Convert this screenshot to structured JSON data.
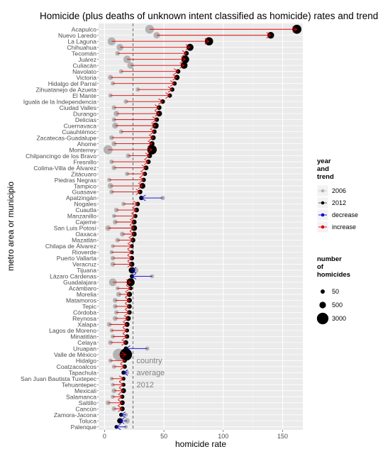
{
  "chart_data": {
    "type": "scatter",
    "title": "Homicide (plus deaths of unknown intent classified as homicide) rates and trends",
    "xlabel": "homicide rate",
    "ylabel": "metro area or municipio",
    "xlim": [
      -5,
      167
    ],
    "xticks": [
      0,
      50,
      100,
      150
    ],
    "grid": true,
    "country_average": {
      "value": 24,
      "lines": [
        "country",
        "average",
        "2012"
      ]
    },
    "colors": {
      "y2006": "#b3b3b3",
      "y2012": "#000000",
      "decrease": "#0000dd",
      "increase": "#dd0000",
      "panel": "#ebebeb",
      "avg_line": "#808080"
    },
    "rows": [
      {
        "name": "Acapulco",
        "r2006": 38,
        "r2012": 162,
        "h2012": 1500
      },
      {
        "name": "Nuevo Laredo",
        "r2006": 44,
        "r2012": 140,
        "h2012": 550
      },
      {
        "name": "La Laguna",
        "r2006": 6,
        "r2012": 88,
        "h2012": 1100
      },
      {
        "name": "Chihuahua",
        "r2006": 13,
        "r2012": 72,
        "h2012": 650
      },
      {
        "name": "Tecomán",
        "r2006": 11,
        "r2012": 69,
        "h2012": 100
      },
      {
        "name": "Juárez",
        "r2006": 19,
        "r2012": 68,
        "h2012": 900
      },
      {
        "name": "Culiacán",
        "r2006": 22,
        "r2012": 67,
        "h2012": 600
      },
      {
        "name": "Navolato",
        "r2006": 14,
        "r2012": 62,
        "h2012": 80
      },
      {
        "name": "Victoria",
        "r2006": 5,
        "r2012": 61,
        "h2012": 200
      },
      {
        "name": "Hidalgo del Parral",
        "r2006": 7,
        "r2012": 59,
        "h2012": 60
      },
      {
        "name": "Zihuatanejo de Azueta",
        "r2006": 28,
        "r2012": 57,
        "h2012": 70
      },
      {
        "name": "El Mante",
        "r2006": 5,
        "r2012": 55,
        "h2012": 60
      },
      {
        "name": "Iguala de la Independencia",
        "r2006": 18,
        "r2012": 49,
        "h2012": 80
      },
      {
        "name": "Ciudad Valles",
        "r2006": 8,
        "r2012": 46,
        "h2012": 110
      },
      {
        "name": "Durango",
        "r2006": 10,
        "r2012": 46,
        "h2012": 300
      },
      {
        "name": "Delicias",
        "r2006": 8,
        "r2012": 44,
        "h2012": 80
      },
      {
        "name": "Cuernavaca",
        "r2006": 9,
        "r2012": 43,
        "h2012": 400
      },
      {
        "name": "Cuauhtémoc",
        "r2006": 14,
        "r2012": 42,
        "h2012": 70
      },
      {
        "name": "Zacatecas-Guadalupe",
        "r2006": 6,
        "r2012": 41,
        "h2012": 140
      },
      {
        "name": "Ahome",
        "r2006": 8,
        "r2012": 40,
        "h2012": 170
      },
      {
        "name": "Monterrey",
        "r2006": 3,
        "r2012": 40,
        "h2012": 1700
      },
      {
        "name": "Chilpancingo de los Bravo",
        "r2006": 20,
        "r2012": 38,
        "h2012": 120
      },
      {
        "name": "Fresnillo",
        "r2006": 6,
        "r2012": 37,
        "h2012": 80
      },
      {
        "name": "Colima-Villa de Álvarez",
        "r2006": 8,
        "r2012": 35,
        "h2012": 120
      },
      {
        "name": "Zitácuaro",
        "r2006": 19,
        "r2012": 34,
        "h2012": 55
      },
      {
        "name": "Piedras Negras",
        "r2006": 4,
        "r2012": 33,
        "h2012": 60
      },
      {
        "name": "Tampico",
        "r2006": 5,
        "r2012": 32,
        "h2012": 280
      },
      {
        "name": "Guasave",
        "r2006": 6,
        "r2012": 30,
        "h2012": 90
      },
      {
        "name": "Apatzingán",
        "r2006": 49,
        "r2012": 31,
        "h2012": 75
      },
      {
        "name": "Nogales",
        "r2006": 16,
        "r2012": 28,
        "h2012": 65
      },
      {
        "name": "Cuautla",
        "r2006": 10,
        "r2012": 27,
        "h2012": 110
      },
      {
        "name": "Manzanillo",
        "r2006": 8,
        "r2012": 26,
        "h2012": 45
      },
      {
        "name": "Cajeme",
        "r2006": 9,
        "r2012": 25,
        "h2012": 120
      },
      {
        "name": "San Luis Potosí",
        "r2006": 3,
        "r2012": 25,
        "h2012": 280
      },
      {
        "name": "Oaxaca",
        "r2006": 15,
        "r2012": 25,
        "h2012": 140
      },
      {
        "name": "Mazatlán",
        "r2006": 11,
        "r2012": 24,
        "h2012": 110
      },
      {
        "name": "Chilapa de Álvarez",
        "r2006": 7,
        "r2012": 23,
        "h2012": 30
      },
      {
        "name": "Rioverde",
        "r2006": 6,
        "r2012": 23,
        "h2012": 35
      },
      {
        "name": "Puerto Vallarta",
        "r2006": 7,
        "r2012": 23,
        "h2012": 90
      },
      {
        "name": "Veracruz",
        "r2006": 7,
        "r2012": 23,
        "h2012": 160
      },
      {
        "name": "Tijuana",
        "r2006": 26,
        "r2012": 23,
        "h2012": 400
      },
      {
        "name": "Lázaro Cárdenas",
        "r2006": 40,
        "r2012": 23,
        "h2012": 40
      },
      {
        "name": "Guadalajara",
        "r2006": 7,
        "r2012": 22,
        "h2012": 1000
      },
      {
        "name": "Acámbaro",
        "r2006": 11,
        "r2012": 22,
        "h2012": 25
      },
      {
        "name": "Morelia",
        "r2006": 12,
        "r2012": 21,
        "h2012": 180
      },
      {
        "name": "Matamoros",
        "r2006": 9,
        "r2012": 21,
        "h2012": 140
      },
      {
        "name": "Tepic",
        "r2006": 9,
        "r2012": 21,
        "h2012": 100
      },
      {
        "name": "Córdoba",
        "r2006": 10,
        "r2012": 21,
        "h2012": 75
      },
      {
        "name": "Reynosa",
        "r2006": 9,
        "r2012": 20,
        "h2012": 160
      },
      {
        "name": "Xalapa",
        "r2006": 4,
        "r2012": 19,
        "h2012": 140
      },
      {
        "name": "Lagos de Moreno",
        "r2006": 6,
        "r2012": 19,
        "h2012": 30
      },
      {
        "name": "Minatitlán",
        "r2006": 7,
        "r2012": 19,
        "h2012": 65
      },
      {
        "name": "Celaya",
        "r2006": 5,
        "r2012": 18,
        "h2012": 110
      },
      {
        "name": "Uruapan",
        "r2006": 36,
        "r2012": 18,
        "h2012": 55
      },
      {
        "name": "Valle de México",
        "r2006": 12,
        "r2012": 18,
        "h2012": 3600
      },
      {
        "name": "Hidalgo",
        "r2006": 5,
        "r2012": 17,
        "h2012": 60
      },
      {
        "name": "Coatzacoalcos",
        "r2006": 8,
        "r2012": 17,
        "h2012": 60
      },
      {
        "name": "Tapachula",
        "r2006": 19,
        "r2012": 16,
        "h2012": 50
      },
      {
        "name": "San Juan Bautista Tuxtepec",
        "r2006": 6,
        "r2012": 16,
        "h2012": 25
      },
      {
        "name": "Tehuantepec",
        "r2006": 7,
        "r2012": 16,
        "h2012": 25
      },
      {
        "name": "Mexicali",
        "r2006": 8,
        "r2012": 16,
        "h2012": 150
      },
      {
        "name": "Salamanca",
        "r2006": 7,
        "r2012": 15,
        "h2012": 40
      },
      {
        "name": "Saltillo",
        "r2006": 3,
        "r2012": 15,
        "h2012": 120
      },
      {
        "name": "Cancún",
        "r2006": 8,
        "r2012": 15,
        "h2012": 110
      },
      {
        "name": "Zamora-Jacona",
        "r2006": 18,
        "r2012": 14,
        "h2012": 35
      },
      {
        "name": "Toluca",
        "r2006": 19,
        "r2012": 13,
        "h2012": 250
      },
      {
        "name": "Palenque",
        "r2006": 18,
        "r2012": 10,
        "h2012": 15
      }
    ],
    "legend": {
      "placement": "right",
      "trend_title_lines": [
        "year",
        "and",
        "trend"
      ],
      "trend_items": [
        {
          "label": "2006",
          "kind": "point",
          "color": "#b3b3b3"
        },
        {
          "label": "2012",
          "kind": "point",
          "color": "#000000"
        },
        {
          "label": "decrease",
          "kind": "arrow",
          "color": "#0000dd"
        },
        {
          "label": "increase",
          "kind": "arrow",
          "color": "#dd0000"
        }
      ],
      "size_title_lines": [
        "number",
        "of",
        "homicides"
      ],
      "size_items": [
        {
          "label": "50",
          "value": 50
        },
        {
          "label": "500",
          "value": 500
        },
        {
          "label": "3000",
          "value": 3000
        }
      ]
    }
  }
}
